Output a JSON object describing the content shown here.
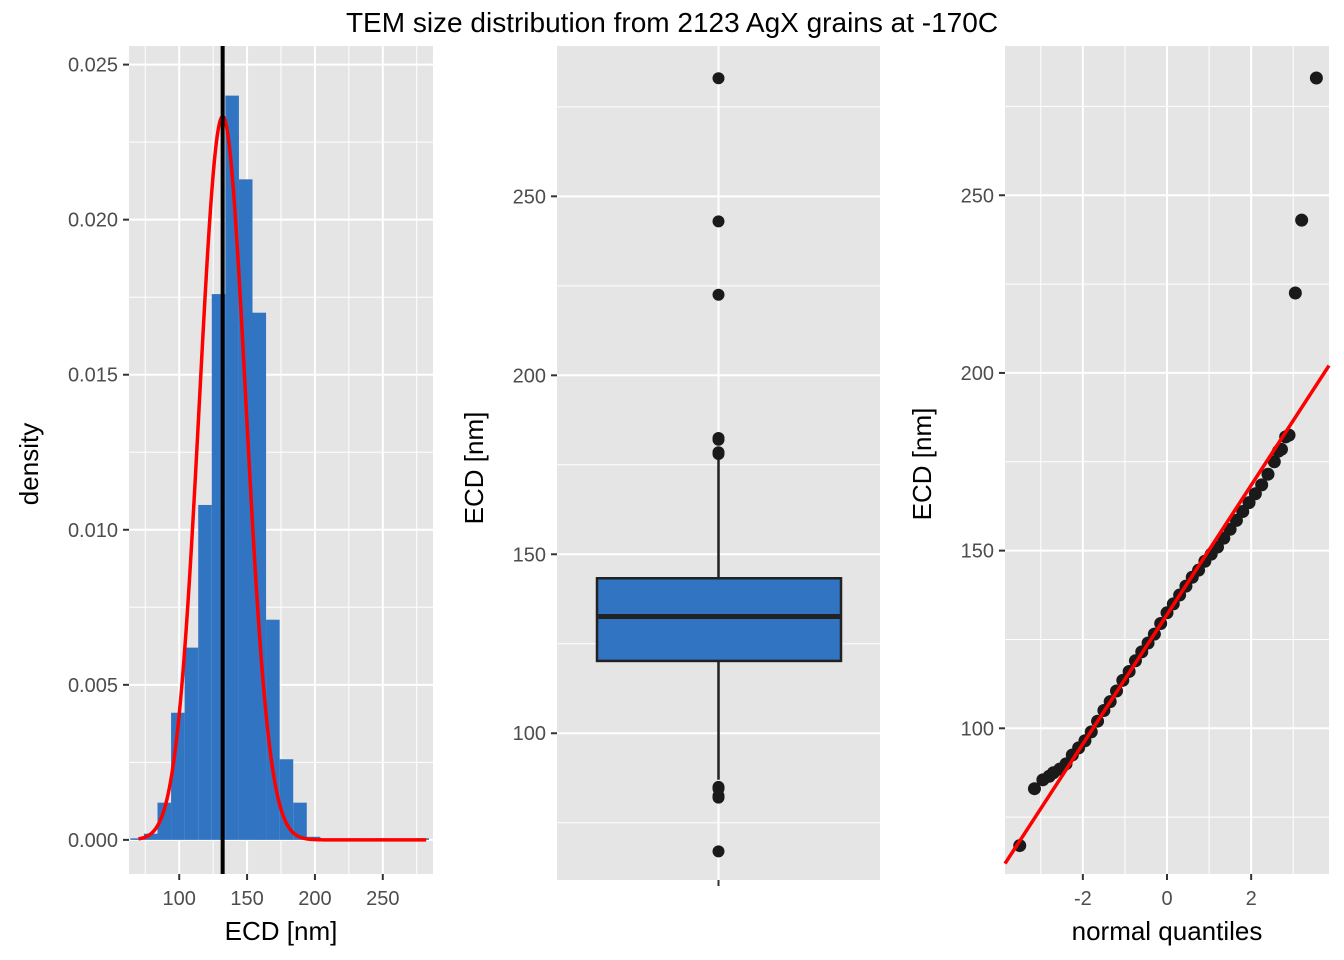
{
  "figure_title": "TEM size distribution from 2123 AgX grains at -170C",
  "colors": {
    "panel_bg": "#e5e5e5",
    "grid": "#ffffff",
    "bar_fill": "#3174c2",
    "density_curve": "#ff0000",
    "mean_line": "#000000",
    "box_fill": "#3174c2",
    "box_stroke": "#222222",
    "point": "#1a1a1a",
    "qq_line": "#ff0000",
    "tick_label": "#4d4d4d"
  },
  "chart_data": [
    {
      "type": "bar",
      "subtype": "histogram_with_density",
      "title": "",
      "xlabel": "ECD [nm]",
      "ylabel": "density",
      "xlim": [
        63,
        287
      ],
      "ylim": [
        -0.0011,
        0.0256
      ],
      "xticks": [
        100,
        150,
        200,
        250
      ],
      "yticks": [
        0.0,
        0.005,
        0.01,
        0.015,
        0.02,
        0.025
      ],
      "ytick_labels": [
        "0.000",
        "0.005",
        "0.010",
        "0.015",
        "0.020",
        "0.025"
      ],
      "grid": true,
      "bin_width": 10,
      "bins": [
        {
          "x0": 64,
          "x1": 74,
          "density": 5e-05
        },
        {
          "x0": 74,
          "x1": 84,
          "density": 0.0002
        },
        {
          "x0": 84,
          "x1": 94,
          "density": 0.0012
        },
        {
          "x0": 94,
          "x1": 104,
          "density": 0.0041
        },
        {
          "x0": 104,
          "x1": 114,
          "density": 0.0062
        },
        {
          "x0": 114,
          "x1": 124,
          "density": 0.0108
        },
        {
          "x0": 124,
          "x1": 134,
          "density": 0.0176
        },
        {
          "x0": 134,
          "x1": 144,
          "density": 0.024
        },
        {
          "x0": 144,
          "x1": 154,
          "density": 0.0213
        },
        {
          "x0": 154,
          "x1": 164,
          "density": 0.017
        },
        {
          "x0": 164,
          "x1": 174,
          "density": 0.0071
        },
        {
          "x0": 174,
          "x1": 184,
          "density": 0.0026
        },
        {
          "x0": 184,
          "x1": 194,
          "density": 0.0012
        },
        {
          "x0": 194,
          "x1": 204,
          "density": 0.0001
        },
        {
          "x0": 224,
          "x1": 234,
          "density": 5e-05
        },
        {
          "x0": 244,
          "x1": 254,
          "density": 5e-05
        },
        {
          "x0": 274,
          "x1": 284,
          "density": 5e-05
        }
      ],
      "density_curve": {
        "type": "normal",
        "mean": 132.0,
        "sd": 17.1,
        "x_range": [
          70,
          282
        ]
      },
      "mean_line_x": 132.0
    },
    {
      "type": "boxplot",
      "title": "",
      "xlabel": "",
      "ylabel": "ECD [nm]",
      "ylim": [
        59,
        292
      ],
      "yticks": [
        100,
        150,
        200,
        250
      ],
      "grid": true,
      "box": {
        "q1": 120.2,
        "median": 132.6,
        "q3": 143.3,
        "whisker_low": 87.0,
        "whisker_high": 177.0
      },
      "outliers": [
        283.0,
        243.0,
        222.5,
        182.5,
        182.0,
        178.5,
        178.0,
        85.0,
        84.5,
        82.5,
        82.0,
        67.0
      ]
    },
    {
      "type": "scatter",
      "subtype": "qq_plot",
      "title": "",
      "xlabel": "normal quantiles",
      "ylabel": "ECD [nm]",
      "xlim": [
        -3.85,
        3.85
      ],
      "ylim": [
        59,
        292
      ],
      "xticks": [
        -2,
        0,
        2
      ],
      "yticks": [
        100,
        150,
        200,
        250
      ],
      "grid": true,
      "n": 2123,
      "fit_line": {
        "intercept": 132.0,
        "slope": 18.2
      },
      "points": [
        [
          -3.5,
          67.0
        ],
        [
          -3.15,
          83.0
        ],
        [
          -2.95,
          85.5
        ],
        [
          -2.8,
          86.5
        ],
        [
          -2.7,
          87.5
        ],
        [
          -2.55,
          88.5
        ],
        [
          -2.4,
          90.0
        ],
        [
          -2.25,
          92.5
        ],
        [
          -2.1,
          94.5
        ],
        [
          -1.95,
          96.5
        ],
        [
          -1.8,
          99.0
        ],
        [
          -1.65,
          102.0
        ],
        [
          -1.5,
          105.0
        ],
        [
          -1.35,
          107.5
        ],
        [
          -1.2,
          110.5
        ],
        [
          -1.05,
          113.5
        ],
        [
          -0.9,
          116.0
        ],
        [
          -0.75,
          119.0
        ],
        [
          -0.6,
          121.5
        ],
        [
          -0.45,
          124.0
        ],
        [
          -0.3,
          126.5
        ],
        [
          -0.15,
          129.5
        ],
        [
          0.0,
          132.5
        ],
        [
          0.15,
          135.0
        ],
        [
          0.3,
          137.5
        ],
        [
          0.45,
          140.0
        ],
        [
          0.6,
          142.5
        ],
        [
          0.75,
          144.5
        ],
        [
          0.9,
          147.0
        ],
        [
          1.05,
          149.0
        ],
        [
          1.2,
          151.0
        ],
        [
          1.35,
          153.5
        ],
        [
          1.5,
          156.0
        ],
        [
          1.65,
          158.5
        ],
        [
          1.8,
          161.0
        ],
        [
          1.95,
          163.5
        ],
        [
          2.1,
          166.0
        ],
        [
          2.25,
          168.5
        ],
        [
          2.4,
          171.5
        ],
        [
          2.55,
          175.0
        ],
        [
          2.65,
          178.0
        ],
        [
          2.72,
          178.5
        ],
        [
          2.82,
          182.0
        ],
        [
          2.9,
          182.5
        ],
        [
          3.05,
          222.5
        ],
        [
          3.2,
          243.0
        ],
        [
          3.55,
          283.0
        ]
      ]
    }
  ]
}
